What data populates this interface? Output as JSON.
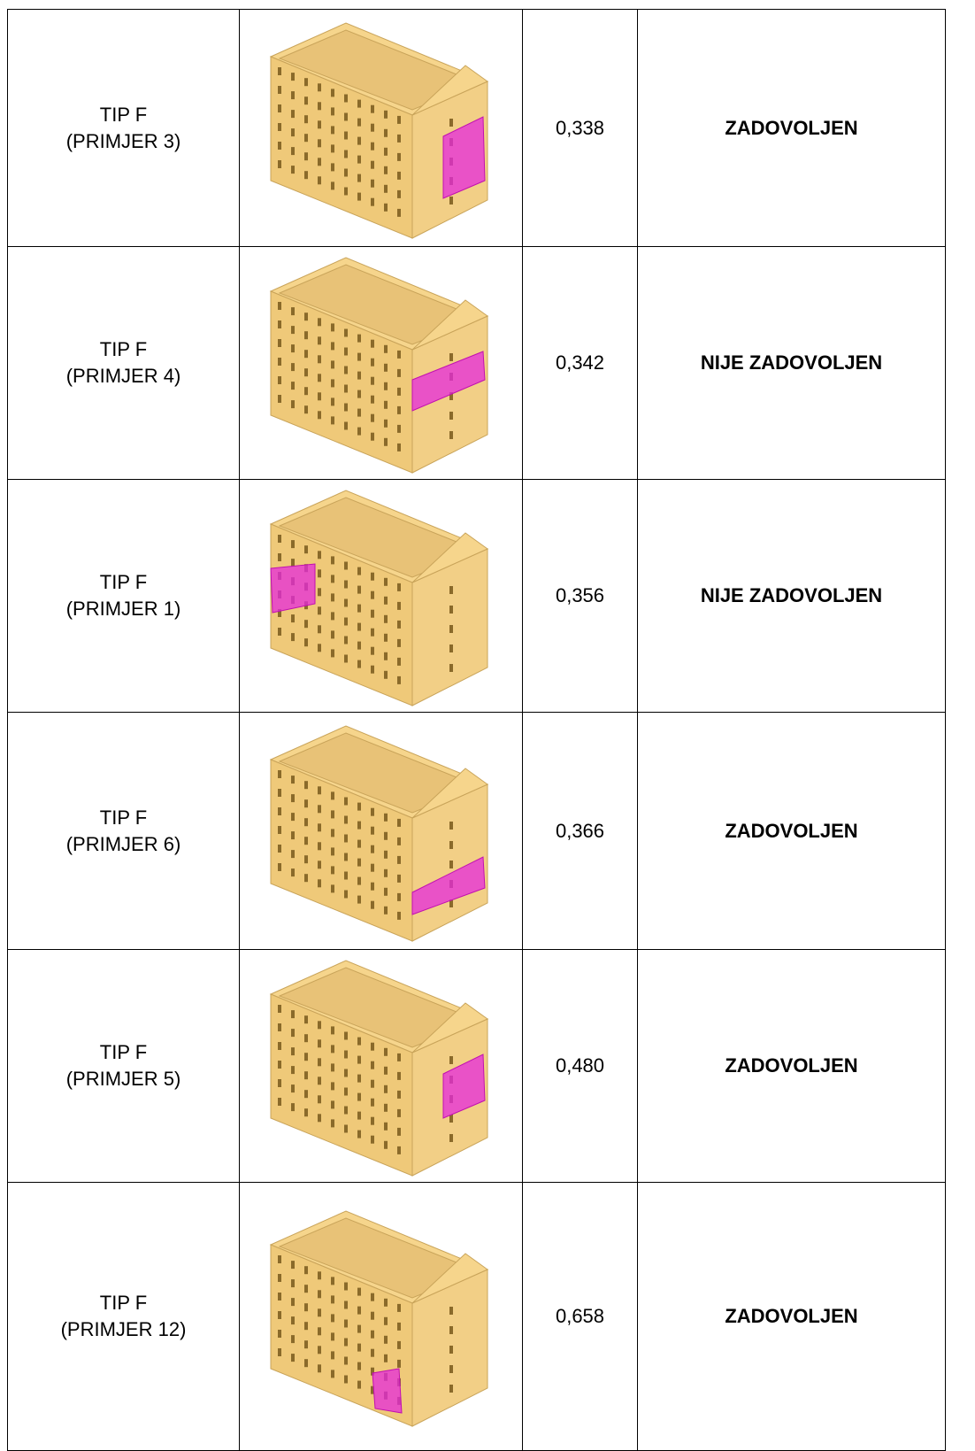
{
  "table": {
    "rows": [
      {
        "type": [
          "TIP F",
          "(PRIMJER 3)"
        ],
        "value": "0,338",
        "status": "ZADOVOLJEN"
      },
      {
        "type": [
          "TIP F",
          "(PRIMJER 4)"
        ],
        "value": "0,342",
        "status": "NIJE ZADOVOLJEN"
      },
      {
        "type": [
          "TIP F",
          "(PRIMJER 1)"
        ],
        "value": "0,356",
        "status": "NIJE ZADOVOLJEN"
      },
      {
        "type": [
          "TIP F",
          "(PRIMJER 6)"
        ],
        "value": "0,366",
        "status": "ZADOVOLJEN"
      },
      {
        "type": [
          "TIP F",
          "(PRIMJER 5)"
        ],
        "value": "0,480",
        "status": "ZADOVOLJEN"
      },
      {
        "type": [
          "TIP F",
          "(PRIMJER 12)"
        ],
        "value": "0,658",
        "status": "ZADOVOLJEN"
      }
    ]
  }
}
